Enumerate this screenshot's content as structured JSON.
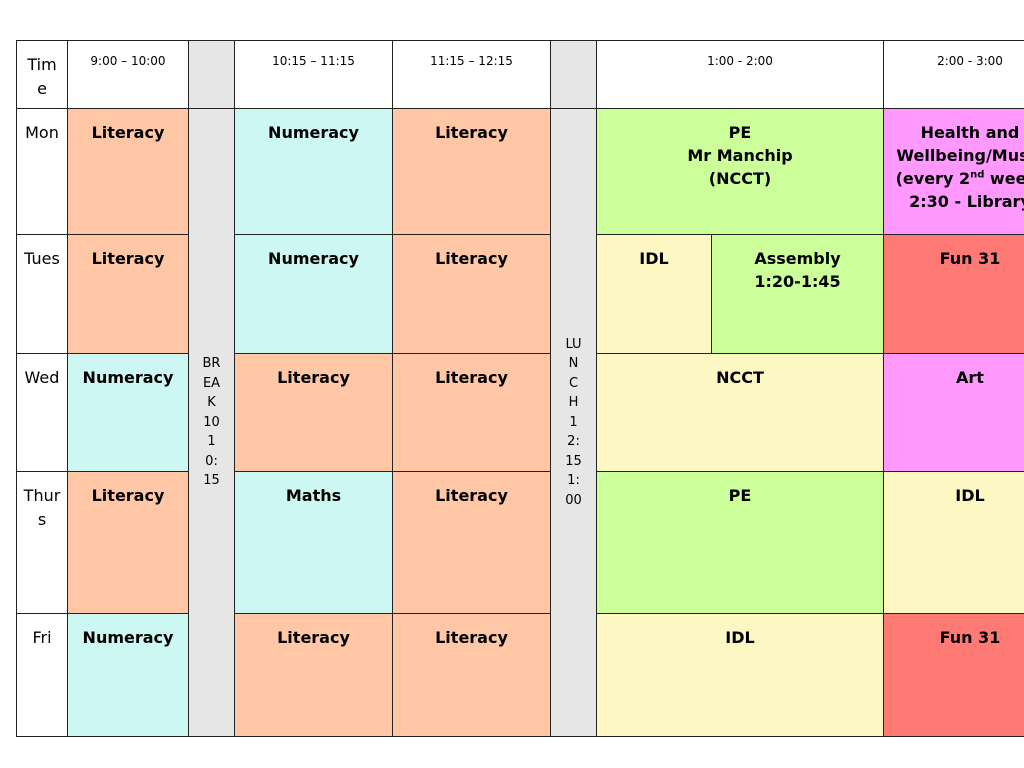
{
  "header": {
    "time_label": "Time",
    "slots": [
      "9:00 – 10:00",
      "10:15 – 11:15",
      "11:15 – 12:15",
      "1:00 - 2:00",
      "2:00 - 3:00"
    ]
  },
  "break_label": "BREAK 10 10:15",
  "lunch_label": "LUNCH 12:15 1:00",
  "days": {
    "mon": "Mon",
    "tue": "Tues",
    "wed": "Wed",
    "thu": "Thurs",
    "fri": "Fri"
  },
  "mon": {
    "s1": "Literacy",
    "s2": "Numeracy",
    "s3": "Literacy",
    "pe_line1": "PE",
    "pe_line2": "Mr Manchip",
    "pe_line3": "(NCCT)",
    "hw_line1": "Health and",
    "hw_line2": "Wellbeing/Music",
    "hw_pre": "(every 2",
    "hw_sup": "nd",
    "hw_post": " week)",
    "hw_line4": "2:30 - Library"
  },
  "tue": {
    "s1": "Literacy",
    "s2": "Numeracy",
    "s3": "Literacy",
    "s4": "IDL",
    "assembly_line1": "Assembly",
    "assembly_line2": "1:20-1:45",
    "s6": "Fun 31"
  },
  "wed": {
    "s1": "Numeracy",
    "s2": "Literacy",
    "s3": "Literacy",
    "s4": "NCCT",
    "s5": "Art"
  },
  "thu": {
    "s1": "Literacy",
    "s2": "Maths",
    "s3": "Literacy",
    "s4": "PE",
    "s5": "IDL"
  },
  "fri": {
    "s1": "Numeracy",
    "s2": "Literacy",
    "s3": "Literacy",
    "s4": "IDL",
    "s5": "Fun 31"
  },
  "colors": {
    "literacy": "#ffc7a6",
    "numeracy": "#cdf7f2",
    "pe": "#ccff99",
    "health": "#ff99ff",
    "idl": "#fdf8c3",
    "fun": "#ff7a74",
    "break": "#e6e6e6"
  }
}
